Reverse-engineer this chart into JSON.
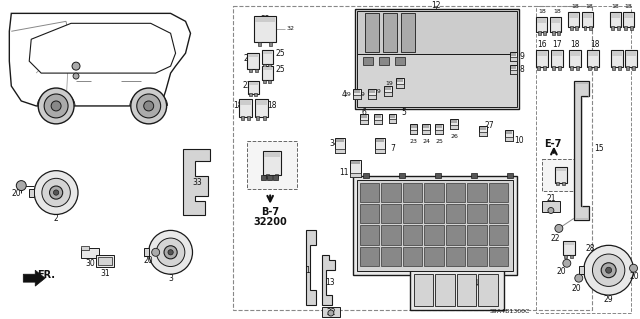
{
  "bg_color": "#ffffff",
  "diagram_code": "S9A4B1300C",
  "relay_label": "B-7\n32200",
  "e7_label": "E-7",
  "fig_width": 6.4,
  "fig_height": 3.19,
  "dpi": 100,
  "line_color": "#1a1a1a",
  "gray1": "#cccccc",
  "gray2": "#aaaaaa",
  "gray3": "#888888",
  "gray4": "#555555",
  "gray5": "#e8e8e8",
  "gray6": "#d4d4d4",
  "pfs": 5.5,
  "pfs_small": 4.5,
  "pfs_large": 7.0
}
